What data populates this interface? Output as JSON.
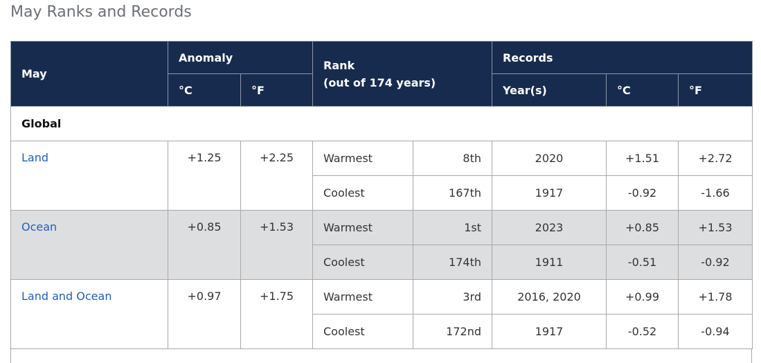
{
  "title": "May Ranks and Records",
  "table": {
    "header": {
      "region": "May",
      "anomaly": "Anomaly",
      "anomaly_c": "°C",
      "anomaly_f": "°F",
      "rank": "Rank",
      "rank_note": "(out of 174 years)",
      "records": "Records",
      "years": "Year(s)",
      "records_c": "°C",
      "records_f": "°F"
    },
    "section": "Global",
    "rows": [
      {
        "region": "Land",
        "anomaly_c": "+1.25",
        "anomaly_f": "+2.25",
        "ranks": [
          {
            "kind": "Warmest",
            "rank": "8th",
            "years": "2020",
            "c": "+1.51",
            "f": "+2.72"
          },
          {
            "kind": "Coolest",
            "rank": "167th",
            "years": "1917",
            "c": "-0.92",
            "f": "-1.66"
          }
        ]
      },
      {
        "region": "Ocean",
        "anomaly_c": "+0.85",
        "anomaly_f": "+1.53",
        "ranks": [
          {
            "kind": "Warmest",
            "rank": "1st",
            "years": "2023",
            "c": "+0.85",
            "f": "+1.53"
          },
          {
            "kind": "Coolest",
            "rank": "174th",
            "years": "1911",
            "c": "-0.51",
            "f": "-0.92"
          }
        ]
      },
      {
        "region": "Land and Ocean",
        "anomaly_c": "+0.97",
        "anomaly_f": "+1.75",
        "ranks": [
          {
            "kind": "Warmest",
            "rank": "3rd",
            "years": "2016, 2020",
            "c": "+0.99",
            "f": "+1.78"
          },
          {
            "kind": "Coolest",
            "rank": "172nd",
            "years": "1917",
            "c": "-0.52",
            "f": "-0.94"
          }
        ]
      }
    ]
  }
}
